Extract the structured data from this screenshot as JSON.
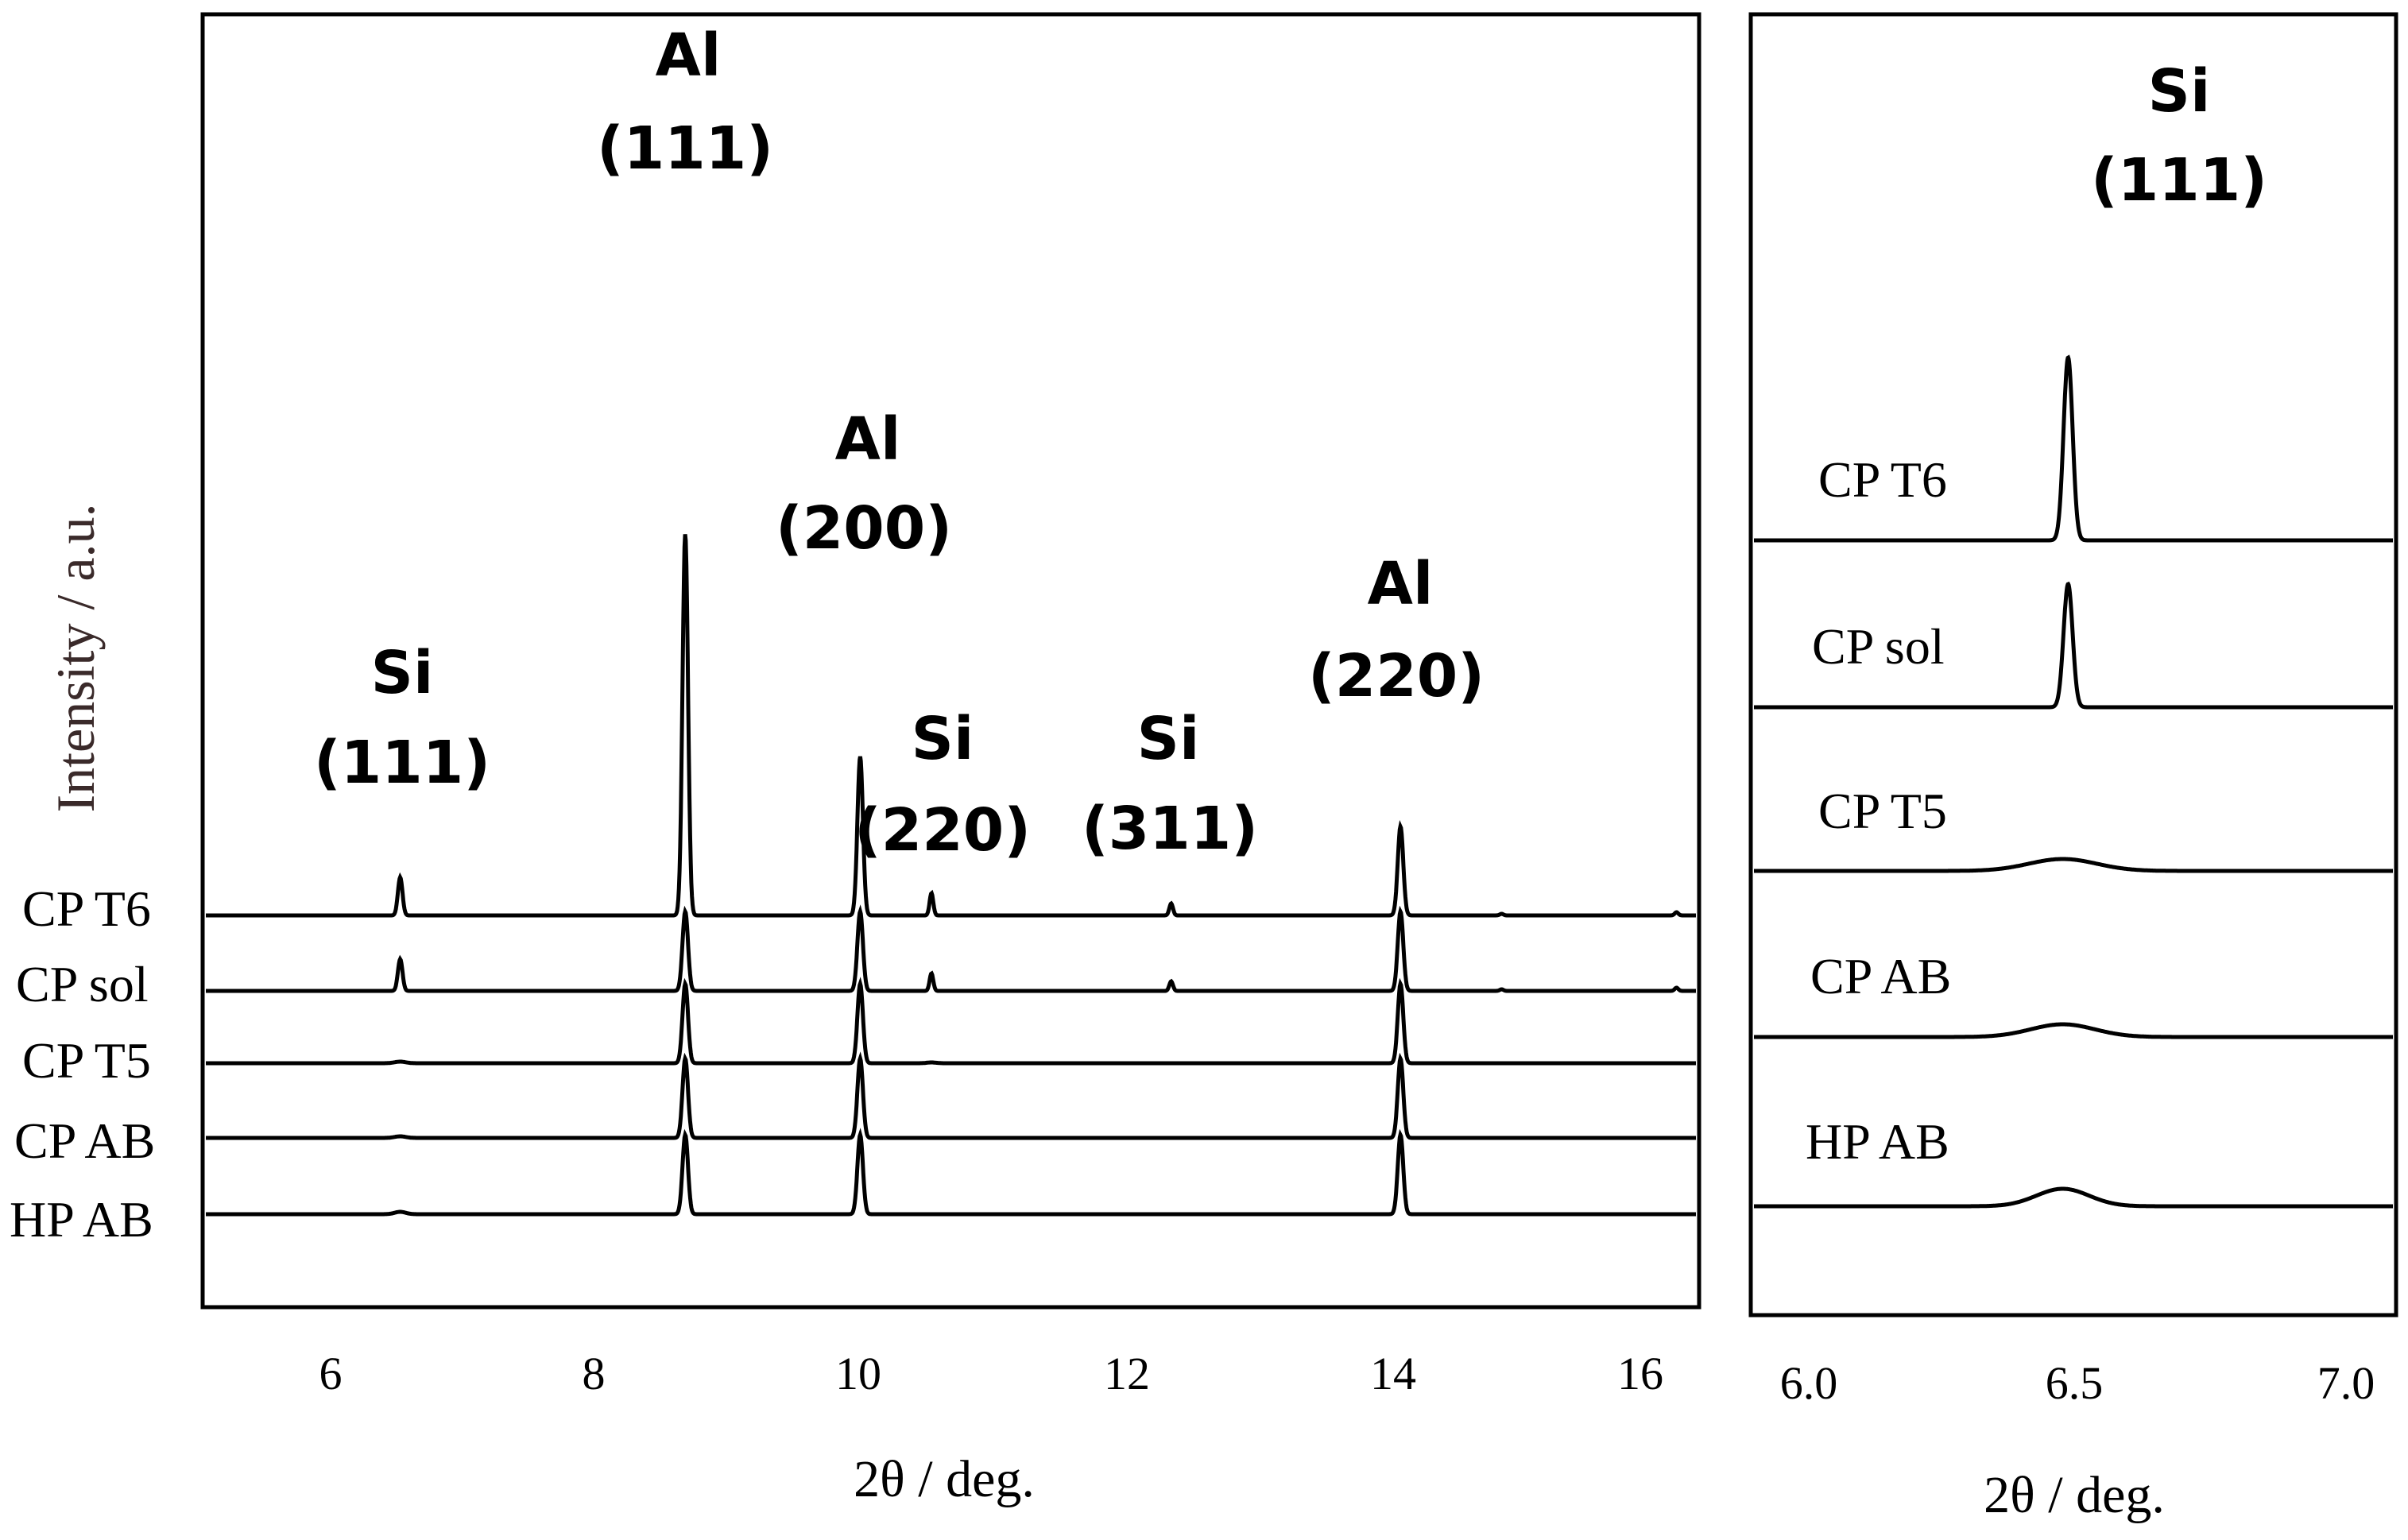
{
  "chart_data": [
    {
      "type": "line",
      "title": "",
      "xlabel": "2θ / deg.",
      "ylabel": "Intensity / a.u.",
      "xlim": [
        5,
        16.5
      ],
      "xticks": [
        6,
        8,
        10,
        12,
        14,
        16
      ],
      "xtick_labels": [
        "6",
        "8",
        "10",
        "12",
        "14",
        "16"
      ],
      "grid": false,
      "series": [
        {
          "name": "CP T6",
          "order": 0,
          "peaks": [
            [
              6.5,
              0.48,
              0.025
            ],
            [
              8.7,
              4.8,
              0.03
            ],
            [
              10.05,
              2.0,
              0.03
            ],
            [
              10.6,
              0.28,
              0.02
            ],
            [
              12.45,
              0.15,
              0.02
            ],
            [
              14.22,
              1.12,
              0.03
            ],
            [
              15.0,
              0.02,
              0.02
            ],
            [
              16.35,
              0.04,
              0.02
            ]
          ]
        },
        {
          "name": "CP sol",
          "order": 1,
          "peaks": [
            [
              6.5,
              0.4,
              0.025
            ],
            [
              8.7,
              1.0,
              0.03
            ],
            [
              10.05,
              1.0,
              0.03
            ],
            [
              10.6,
              0.22,
              0.02
            ],
            [
              12.45,
              0.12,
              0.02
            ],
            [
              14.22,
              1.0,
              0.03
            ],
            [
              15.0,
              0.02,
              0.02
            ],
            [
              16.35,
              0.04,
              0.02
            ]
          ]
        },
        {
          "name": "CP T5",
          "order": 2,
          "peaks": [
            [
              6.5,
              0.02,
              0.06
            ],
            [
              8.7,
              1.0,
              0.03
            ],
            [
              10.05,
              1.0,
              0.03
            ],
            [
              10.6,
              0.01,
              0.05
            ],
            [
              14.22,
              1.0,
              0.03
            ]
          ]
        },
        {
          "name": "CP AB",
          "order": 3,
          "peaks": [
            [
              6.5,
              0.02,
              0.06
            ],
            [
              8.7,
              1.0,
              0.03
            ],
            [
              10.05,
              1.0,
              0.03
            ],
            [
              14.22,
              1.0,
              0.03
            ]
          ]
        },
        {
          "name": "HP AB",
          "order": 4,
          "peaks": [
            [
              6.5,
              0.03,
              0.06
            ],
            [
              8.7,
              1.0,
              0.03
            ],
            [
              10.05,
              1.0,
              0.03
            ],
            [
              14.22,
              1.0,
              0.03
            ]
          ]
        }
      ],
      "annotations": [
        {
          "element": "Si",
          "plane": "(111)",
          "x": 6.5
        },
        {
          "element": "Al",
          "plane": "(111)",
          "x": 8.7
        },
        {
          "element": "Al",
          "plane": "(200)",
          "x": 10.05
        },
        {
          "element": "Si",
          "plane": "(220)",
          "x": 10.6
        },
        {
          "element": "Si",
          "plane": "(311)",
          "x": 12.45
        },
        {
          "element": "Al",
          "plane": "(220)",
          "x": 14.22
        }
      ]
    },
    {
      "type": "line",
      "title": "",
      "xlabel": "2θ / deg.",
      "ylabel": "",
      "xlim": [
        5.9,
        7.1
      ],
      "xticks": [
        6.0,
        6.5,
        7.0
      ],
      "xtick_labels": [
        "6.0",
        "6.5",
        "7.0"
      ],
      "grid": false,
      "series": [
        {
          "name": "CP T6",
          "order": 0,
          "peak": [
            6.49,
            2.3,
            0.012,
            0.0
          ]
        },
        {
          "name": "CP sol",
          "order": 1,
          "peak": [
            6.49,
            1.55,
            0.012,
            0.0
          ]
        },
        {
          "name": "CP T5",
          "order": 2,
          "peak": [
            6.48,
            0.15,
            0.09,
            0.0
          ]
        },
        {
          "name": "CP AB",
          "order": 3,
          "peak": [
            6.48,
            0.16,
            0.085,
            0.0
          ]
        },
        {
          "name": "HP AB",
          "order": 4,
          "peak": [
            6.48,
            0.22,
            0.07,
            0.0
          ]
        }
      ],
      "annotations": [
        {
          "element": "Si",
          "plane": "(111)",
          "x": 6.5
        }
      ]
    }
  ]
}
